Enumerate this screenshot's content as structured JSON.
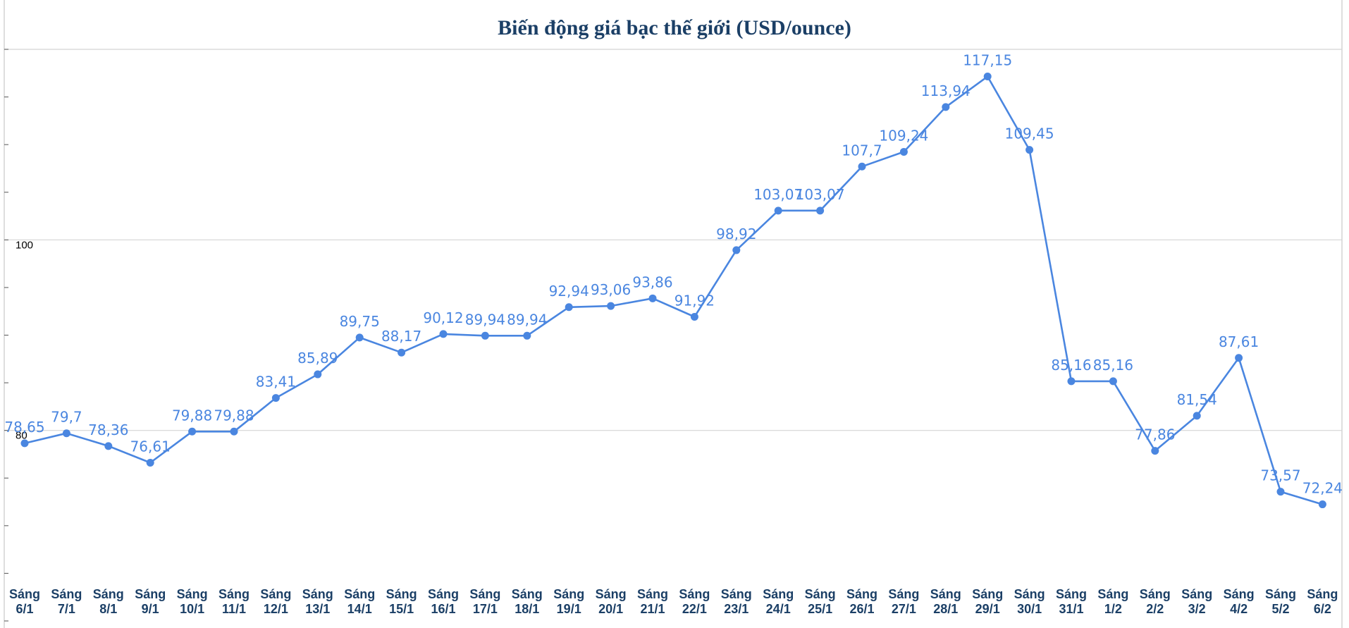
{
  "chart_data": {
    "type": "line",
    "title": "Biến động giá bạc thế giới (USD/ounce)",
    "xlabel": "",
    "ylabel": "",
    "ylim": [
      60,
      120
    ],
    "y_ticks": [
      "80",
      "100"
    ],
    "grid": true,
    "categories": [
      [
        "Sáng",
        "6/1"
      ],
      [
        "Sáng",
        "7/1"
      ],
      [
        "Sáng",
        "8/1"
      ],
      [
        "Sáng",
        "9/1"
      ],
      [
        "Sáng",
        "10/1"
      ],
      [
        "Sáng",
        "11/1"
      ],
      [
        "Sáng",
        "12/1"
      ],
      [
        "Sáng",
        "13/1"
      ],
      [
        "Sáng",
        "14/1"
      ],
      [
        "Sáng",
        "15/1"
      ],
      [
        "Sáng",
        "16/1"
      ],
      [
        "Sáng",
        "17/1"
      ],
      [
        "Sáng",
        "18/1"
      ],
      [
        "Sáng",
        "19/1"
      ],
      [
        "Sáng",
        "20/1"
      ],
      [
        "Sáng",
        "21/1"
      ],
      [
        "Sáng",
        "22/1"
      ],
      [
        "Sáng",
        "23/1"
      ],
      [
        "Sáng",
        "24/1"
      ],
      [
        "Sáng",
        "25/1"
      ],
      [
        "Sáng",
        "26/1"
      ],
      [
        "Sáng",
        "27/1"
      ],
      [
        "Sáng",
        "28/1"
      ],
      [
        "Sáng",
        "29/1"
      ],
      [
        "Sáng",
        "30/1"
      ],
      [
        "Sáng",
        "31/1"
      ],
      [
        "Sáng",
        "1/2"
      ],
      [
        "Sáng",
        "2/2"
      ],
      [
        "Sáng",
        "3/2"
      ],
      [
        "Sáng",
        "4/2"
      ],
      [
        "Sáng",
        "5/2"
      ],
      [
        "Sáng",
        "6/2"
      ]
    ],
    "values": [
      78.65,
      79.7,
      78.36,
      76.61,
      79.88,
      79.88,
      83.41,
      85.89,
      89.75,
      88.17,
      90.12,
      89.94,
      89.94,
      92.94,
      93.06,
      93.86,
      91.92,
      98.92,
      103.07,
      103.07,
      107.7,
      109.24,
      113.94,
      117.15,
      109.45,
      85.16,
      85.16,
      77.86,
      81.54,
      87.61,
      73.57,
      72.24
    ],
    "labels": [
      "78,65",
      "79,7",
      "78,36",
      "76,61",
      "79,88",
      "79,88",
      "83,41",
      "85,89",
      "89,75",
      "88,17",
      "90,12",
      "89,94",
      "89,94",
      "92,94",
      "93,06",
      "93,86",
      "91,92",
      "98,92",
      "103,07",
      "103,07",
      "107,7",
      "109,24",
      "113,94",
      "117,15",
      "109,45",
      "85,16",
      "85,16",
      "77,86",
      "81,54",
      "87,61",
      "73,57",
      "72,24"
    ]
  },
  "colors": {
    "line": "#4a86e0",
    "label": "#4a86e0",
    "title": "#1b3f66",
    "x_tick": "#1b3f66",
    "y_tick": "#000000",
    "grid": "#d4d4d4",
    "frame": "#bdbdbd"
  }
}
